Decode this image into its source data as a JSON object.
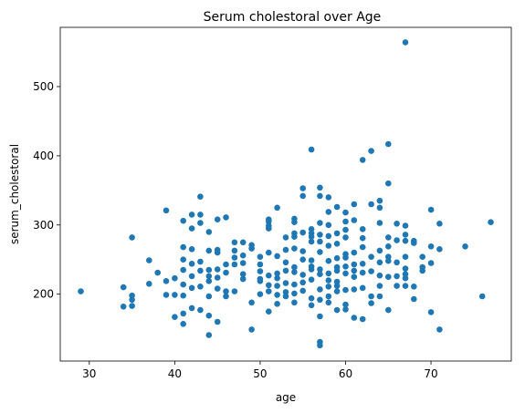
{
  "chart_data": {
    "type": "scatter",
    "title": "Serum cholestoral over Age",
    "xlabel": "age",
    "ylabel": "serum_cholestoral",
    "xlim": [
      26.6,
      79.4
    ],
    "ylim": [
      103.4,
      585.6
    ],
    "xticks": [
      "30",
      "40",
      "50",
      "60",
      "70"
    ],
    "yticks": [
      "200",
      "300",
      "400",
      "500"
    ],
    "grid": false,
    "color": "#1f77b4",
    "points": [
      [
        29,
        204
      ],
      [
        34,
        210
      ],
      [
        34,
        182
      ],
      [
        35,
        282
      ],
      [
        35,
        198
      ],
      [
        35,
        192
      ],
      [
        35,
        183
      ],
      [
        37,
        249
      ],
      [
        37,
        215
      ],
      [
        38,
        231
      ],
      [
        39,
        321
      ],
      [
        39,
        219
      ],
      [
        39,
        199
      ],
      [
        40,
        223
      ],
      [
        40,
        199
      ],
      [
        40,
        167
      ],
      [
        41,
        306
      ],
      [
        41,
        268
      ],
      [
        41,
        250
      ],
      [
        41,
        235
      ],
      [
        41,
        214
      ],
      [
        41,
        198
      ],
      [
        41,
        172
      ],
      [
        41,
        157
      ],
      [
        42,
        315
      ],
      [
        42,
        295
      ],
      [
        42,
        265
      ],
      [
        42,
        244
      ],
      [
        42,
        226
      ],
      [
        42,
        209
      ],
      [
        42,
        180
      ],
      [
        43,
        341
      ],
      [
        43,
        315
      ],
      [
        43,
        303
      ],
      [
        43,
        247
      ],
      [
        43,
        234
      ],
      [
        43,
        211
      ],
      [
        43,
        177
      ],
      [
        44,
        290
      ],
      [
        44,
        263
      ],
      [
        44,
        235
      ],
      [
        44,
        226
      ],
      [
        44,
        219
      ],
      [
        44,
        197
      ],
      [
        44,
        169
      ],
      [
        44,
        141
      ],
      [
        45,
        308
      ],
      [
        45,
        264
      ],
      [
        45,
        260
      ],
      [
        45,
        236
      ],
      [
        45,
        224
      ],
      [
        45,
        208
      ],
      [
        45,
        160
      ],
      [
        46,
        311
      ],
      [
        46,
        243
      ],
      [
        46,
        231
      ],
      [
        46,
        204
      ],
      [
        46,
        197
      ],
      [
        47,
        275
      ],
      [
        47,
        263
      ],
      [
        47,
        253
      ],
      [
        47,
        243
      ],
      [
        47,
        204
      ],
      [
        48,
        275
      ],
      [
        48,
        256
      ],
      [
        48,
        245
      ],
      [
        48,
        229
      ],
      [
        48,
        222
      ],
      [
        49,
        271
      ],
      [
        49,
        266
      ],
      [
        49,
        188
      ],
      [
        49,
        149
      ],
      [
        50,
        254
      ],
      [
        50,
        243
      ],
      [
        50,
        233
      ],
      [
        50,
        222
      ],
      [
        50,
        219
      ],
      [
        50,
        200
      ],
      [
        51,
        308
      ],
      [
        51,
        305
      ],
      [
        51,
        299
      ],
      [
        51,
        295
      ],
      [
        51,
        260
      ],
      [
        51,
        227
      ],
      [
        51,
        213
      ],
      [
        51,
        204
      ],
      [
        51,
        175
      ],
      [
        52,
        325
      ],
      [
        52,
        255
      ],
      [
        52,
        230
      ],
      [
        52,
        223
      ],
      [
        52,
        212
      ],
      [
        52,
        199
      ],
      [
        52,
        186
      ],
      [
        53,
        282
      ],
      [
        53,
        264
      ],
      [
        53,
        246
      ],
      [
        53,
        234
      ],
      [
        53,
        216
      ],
      [
        53,
        203
      ],
      [
        53,
        197
      ],
      [
        54,
        309
      ],
      [
        54,
        304
      ],
      [
        54,
        288
      ],
      [
        54,
        283
      ],
      [
        54,
        266
      ],
      [
        54,
        239
      ],
      [
        54,
        232
      ],
      [
        54,
        214
      ],
      [
        54,
        201
      ],
      [
        54,
        188
      ],
      [
        55,
        353
      ],
      [
        55,
        342
      ],
      [
        55,
        289
      ],
      [
        55,
        262
      ],
      [
        55,
        250
      ],
      [
        55,
        228
      ],
      [
        55,
        217
      ],
      [
        55,
        205
      ],
      [
        56,
        409
      ],
      [
        56,
        294
      ],
      [
        56,
        288
      ],
      [
        56,
        283
      ],
      [
        56,
        276
      ],
      [
        56,
        249
      ],
      [
        56,
        240
      ],
      [
        56,
        236
      ],
      [
        56,
        221
      ],
      [
        56,
        194
      ],
      [
        56,
        184
      ],
      [
        57,
        354
      ],
      [
        57,
        342
      ],
      [
        57,
        303
      ],
      [
        57,
        286
      ],
      [
        57,
        276
      ],
      [
        57,
        261
      ],
      [
        57,
        236
      ],
      [
        57,
        229
      ],
      [
        57,
        207
      ],
      [
        57,
        192
      ],
      [
        57,
        168
      ],
      [
        57,
        131
      ],
      [
        57,
        126
      ],
      [
        58,
        340
      ],
      [
        58,
        319
      ],
      [
        58,
        300
      ],
      [
        58,
        284
      ],
      [
        58,
        270
      ],
      [
        58,
        248
      ],
      [
        58,
        230
      ],
      [
        58,
        220
      ],
      [
        58,
        211
      ],
      [
        58,
        197
      ],
      [
        58,
        188
      ],
      [
        59,
        326
      ],
      [
        59,
        288
      ],
      [
        59,
        273
      ],
      [
        59,
        252
      ],
      [
        59,
        239
      ],
      [
        59,
        234
      ],
      [
        59,
        218
      ],
      [
        59,
        212
      ],
      [
        59,
        204
      ],
      [
        59,
        177
      ],
      [
        60,
        318
      ],
      [
        60,
        305
      ],
      [
        60,
        293
      ],
      [
        60,
        282
      ],
      [
        60,
        258
      ],
      [
        60,
        253
      ],
      [
        60,
        240
      ],
      [
        60,
        230
      ],
      [
        60,
        206
      ],
      [
        60,
        185
      ],
      [
        60,
        178
      ],
      [
        61,
        330
      ],
      [
        61,
        307
      ],
      [
        61,
        260
      ],
      [
        61,
        243
      ],
      [
        61,
        234
      ],
      [
        61,
        225
      ],
      [
        61,
        207
      ],
      [
        61,
        166
      ],
      [
        62,
        394
      ],
      [
        62,
        294
      ],
      [
        62,
        281
      ],
      [
        62,
        268
      ],
      [
        62,
        244
      ],
      [
        62,
        231
      ],
      [
        62,
        209
      ],
      [
        62,
        164
      ],
      [
        63,
        407
      ],
      [
        63,
        330
      ],
      [
        63,
        254
      ],
      [
        63,
        233
      ],
      [
        63,
        197
      ],
      [
        63,
        187
      ],
      [
        64,
        335
      ],
      [
        64,
        325
      ],
      [
        64,
        303
      ],
      [
        64,
        263
      ],
      [
        64,
        246
      ],
      [
        64,
        227
      ],
      [
        64,
        212
      ],
      [
        64,
        197
      ],
      [
        65,
        417
      ],
      [
        65,
        360
      ],
      [
        65,
        282
      ],
      [
        65,
        269
      ],
      [
        65,
        254
      ],
      [
        65,
        248
      ],
      [
        65,
        225
      ],
      [
        65,
        177
      ],
      [
        66,
        302
      ],
      [
        66,
        278
      ],
      [
        66,
        246
      ],
      [
        66,
        226
      ],
      [
        66,
        212
      ],
      [
        67,
        564
      ],
      [
        67,
        299
      ],
      [
        67,
        286
      ],
      [
        67,
        277
      ],
      [
        67,
        254
      ],
      [
        67,
        237
      ],
      [
        67,
        229
      ],
      [
        67,
        223
      ],
      [
        67,
        212
      ],
      [
        68,
        277
      ],
      [
        68,
        274
      ],
      [
        68,
        211
      ],
      [
        68,
        193
      ],
      [
        69,
        254
      ],
      [
        69,
        239
      ],
      [
        69,
        234
      ],
      [
        70,
        322
      ],
      [
        70,
        269
      ],
      [
        70,
        245
      ],
      [
        70,
        174
      ],
      [
        71,
        302
      ],
      [
        71,
        265
      ],
      [
        71,
        149
      ],
      [
        74,
        269
      ],
      [
        76,
        197
      ],
      [
        77,
        304
      ]
    ]
  }
}
